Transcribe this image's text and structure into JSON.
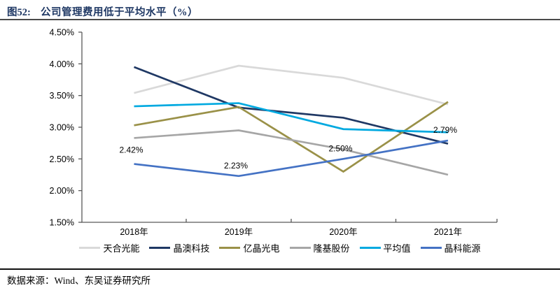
{
  "header": {
    "figure_label": "图52:",
    "title": "公司管理费用低于平均水平（%）"
  },
  "footer": {
    "source": "数据来源：Wind、东吴证券研究所"
  },
  "chart_data": {
    "type": "line",
    "title": "公司管理费用低于平均水平（%）",
    "categories": [
      "2018年",
      "2019年",
      "2020年",
      "2021年"
    ],
    "y_axis": {
      "min": 1.5,
      "max": 4.5,
      "step": 0.5,
      "tick_labels_top_down": [
        "4.50%",
        "4.00%",
        "3.50%",
        "3.00%",
        "2.50%",
        "2.00%",
        "1.50%"
      ]
    },
    "grid": false,
    "legend_position": "bottom",
    "axis_color": "#595959",
    "label_color": "#000000",
    "series": [
      {
        "name": "天合光能",
        "color": "#d9d9d9",
        "values": [
          3.54,
          3.97,
          3.78,
          3.36
        ]
      },
      {
        "name": "晶澳科技",
        "color": "#1f3864",
        "values": [
          3.95,
          3.31,
          3.15,
          2.74
        ]
      },
      {
        "name": "亿晶光电",
        "color": "#9a9148",
        "values": [
          3.03,
          3.32,
          2.3,
          3.4
        ]
      },
      {
        "name": "隆基股份",
        "color": "#a6a6a6",
        "values": [
          2.83,
          2.95,
          2.65,
          2.25
        ]
      },
      {
        "name": "平均值",
        "color": "#00a9e0",
        "values": [
          3.33,
          3.38,
          2.97,
          2.92
        ]
      },
      {
        "name": "晶科能源",
        "color": "#4472c4",
        "values": [
          2.42,
          2.23,
          2.5,
          2.79
        ],
        "point_labels": [
          "2.42%",
          "2.23%",
          "2.50%",
          "2.79%"
        ]
      }
    ]
  }
}
